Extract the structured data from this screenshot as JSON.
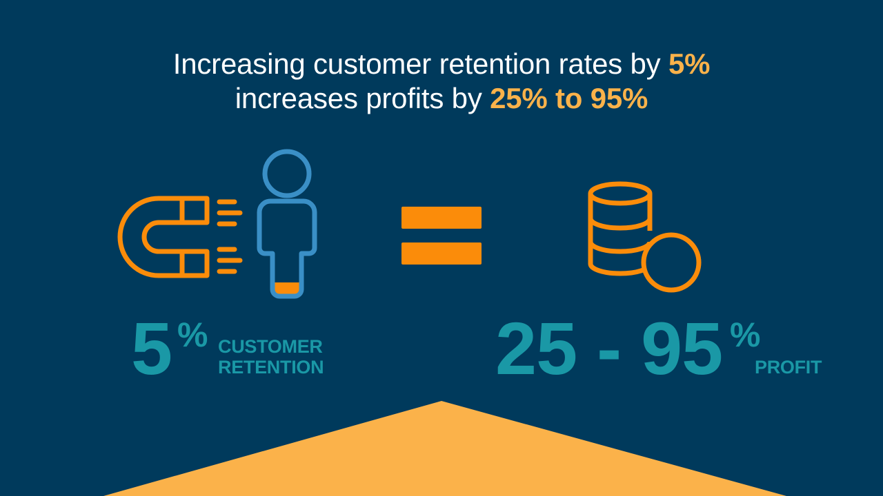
{
  "headline": {
    "line1_text": "Increasing customer retention rates by ",
    "line1_highlight": "5%",
    "line2_text": "increases profits by ",
    "line2_highlight": "25% to 95%"
  },
  "left_stat": {
    "number": "5",
    "percent": "%",
    "label_line1": "CUSTOMER",
    "label_line2": "RETENTION"
  },
  "right_stat": {
    "number": "25 - 95",
    "percent": "%",
    "label": "PROFIT"
  },
  "icons": {
    "left": "magnet-person-icon",
    "middle": "equals-icon",
    "right": "coins-stack-icon"
  },
  "colors": {
    "background": "#003a5c",
    "accent_orange": "#fb8c0a",
    "highlight_yellow": "#fbb24a",
    "person_blue": "#3a8fc6",
    "stat_teal": "#1a98a6",
    "bottom_shape": "#fbb24a"
  }
}
